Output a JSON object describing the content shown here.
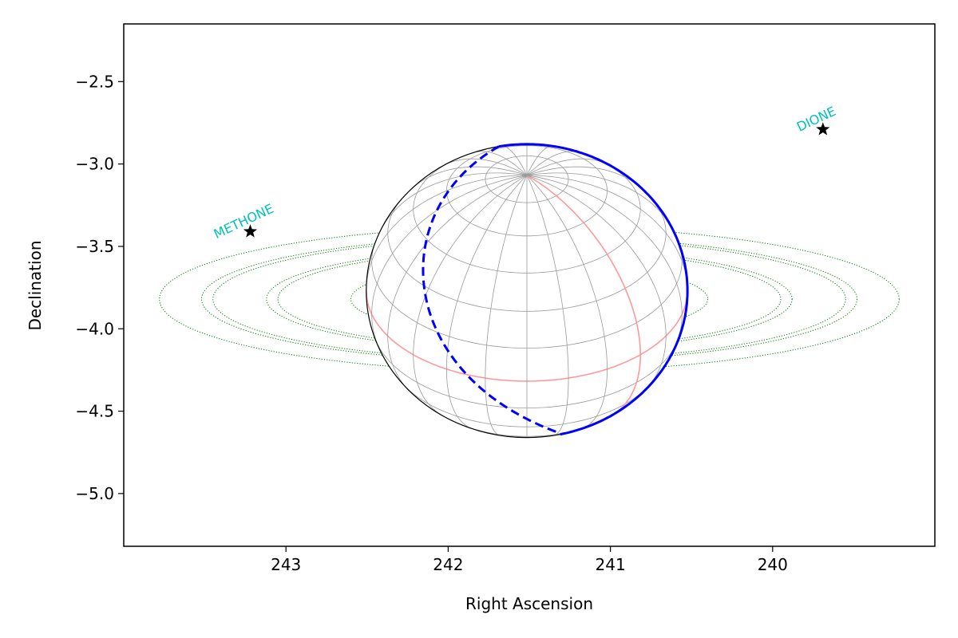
{
  "chart_data": {
    "type": "scatter",
    "title": "",
    "xlabel": "Right Ascension",
    "ylabel": "Declination",
    "xlim": [
      244.0,
      239.0
    ],
    "ylim": [
      -5.32,
      -2.15
    ],
    "x_inverted": true,
    "xticks": [
      243,
      242,
      241,
      240
    ],
    "xtick_labels": [
      "243",
      "242",
      "241",
      "240"
    ],
    "yticks": [
      -2.5,
      -3.0,
      -3.5,
      -4.0,
      -4.5,
      -5.0
    ],
    "ytick_labels": [
      "−2.5",
      "−3.0",
      "−3.5",
      "−4.0",
      "−4.5",
      "−5.0"
    ],
    "grid": false,
    "legend": "none",
    "planet": {
      "center_ra": 241.515,
      "center_dec": -3.77,
      "radius_ra": 0.99,
      "radius_dec": 0.89,
      "limb_color": "#000000",
      "graticule_color": "#999999",
      "equator_and_meridian_color": "#ff9999",
      "terminator_color": "#0000ff"
    },
    "rings": {
      "color": "#007f00",
      "style": "dotted",
      "ellipses": [
        {
          "center_ra": 241.5,
          "center_dec": -3.82,
          "semi_ra": 0.82,
          "semi_dec": 0.17
        },
        {
          "center_ra": 241.5,
          "center_dec": -3.82,
          "semi_ra": 1.1,
          "semi_dec": 0.22
        },
        {
          "center_ra": 241.5,
          "center_dec": -3.82,
          "semi_ra": 1.55,
          "semi_dec": 0.3
        },
        {
          "center_ra": 241.5,
          "center_dec": -3.82,
          "semi_ra": 1.62,
          "semi_dec": 0.31
        },
        {
          "center_ra": 241.5,
          "center_dec": -3.82,
          "semi_ra": 1.95,
          "semi_dec": 0.37
        },
        {
          "center_ra": 241.5,
          "center_dec": -3.82,
          "semi_ra": 2.02,
          "semi_dec": 0.38
        },
        {
          "center_ra": 241.5,
          "center_dec": -3.82,
          "semi_ra": 2.28,
          "semi_dec": 0.44
        }
      ]
    },
    "moons": [
      {
        "name": "METHONE",
        "ra": 243.22,
        "dec": -3.41,
        "label_color": "#00bfbf",
        "marker_color": "#000000"
      },
      {
        "name": "DIONE",
        "ra": 239.69,
        "dec": -2.79,
        "label_color": "#00bfbf",
        "marker_color": "#000000"
      }
    ]
  }
}
